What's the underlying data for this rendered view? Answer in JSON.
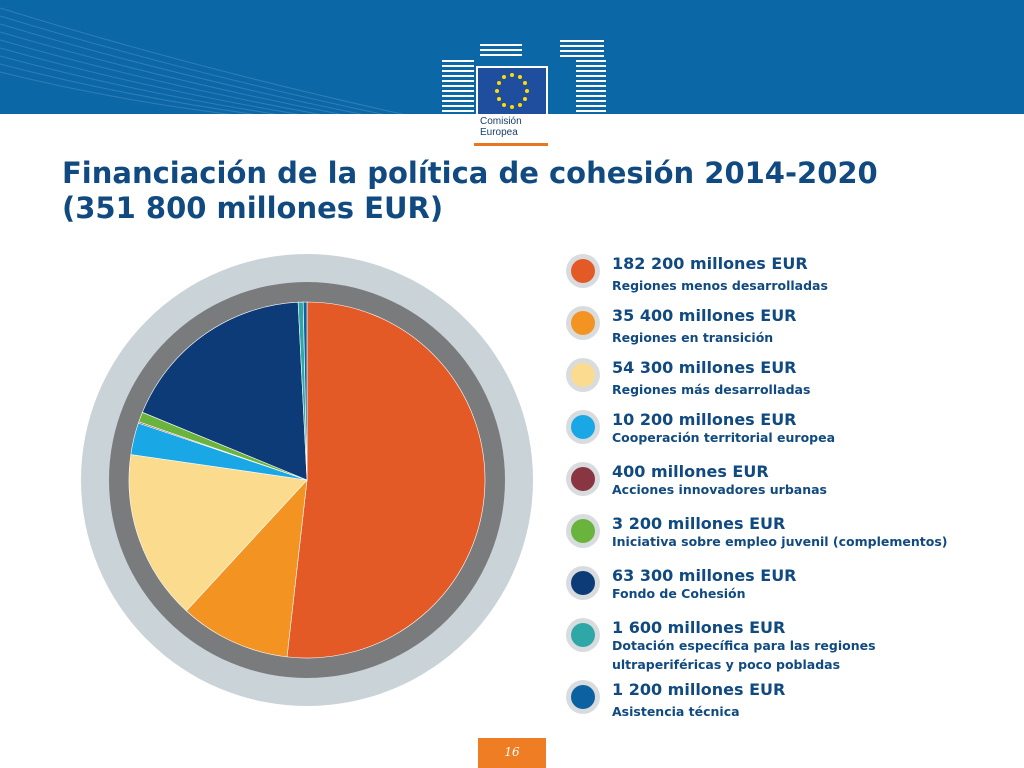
{
  "header": {
    "logo_lines": "Comisión\nEuropea",
    "colors": {
      "band": "#0c67a6",
      "accent": "#e87722",
      "title": "#104a80"
    }
  },
  "title": {
    "line1": "Financiación de la política de cohesión 2014-2020",
    "line2": "(351 800 millones EUR)"
  },
  "chart_data": {
    "type": "pie",
    "title": "Financiación de la política de cohesión 2014-2020 (351 800 millones EUR)",
    "unit": "millones EUR",
    "start_angle_deg": 0,
    "direction": "clockwise",
    "slices": [
      {
        "amount": "182 200 millones EUR",
        "label": "Regiones menos desarrolladas",
        "value": 182200,
        "color": "#e35a26"
      },
      {
        "amount": "35 400 millones EUR",
        "label": "Regiones en transición",
        "value": 35400,
        "color": "#f39322"
      },
      {
        "amount": "54 300 millones EUR",
        "label": "Regiones más desarrolladas",
        "value": 54300,
        "color": "#fbdb8d"
      },
      {
        "amount": "10 200 millones EUR",
        "label": "Cooperación territorial europea",
        "value": 10200,
        "color": "#1aa7e6"
      },
      {
        "amount": "400 millones EUR",
        "label": "Acciones innovadores urbanas",
        "value": 400,
        "color": "#8a3542"
      },
      {
        "amount": "3 200 millones EUR",
        "label": "Iniciativa sobre empleo juvenil (complementos)",
        "value": 3200,
        "color": "#6ab43e"
      },
      {
        "amount": "63 300 millones EUR",
        "label": "Fondo de Cohesión",
        "value": 63300,
        "color": "#0d3b77"
      },
      {
        "amount": "1 600 millones EUR",
        "label": "Dotación específica para las regiones\nultraperiféricas y poco pobladas",
        "value": 1600,
        "color": "#2fa7a6"
      },
      {
        "amount": "1 200 millones EUR",
        "label": "Asistencia técnica",
        "value": 1200,
        "color": "#0c62a0"
      }
    ]
  },
  "footer": {
    "page_number": "16"
  }
}
